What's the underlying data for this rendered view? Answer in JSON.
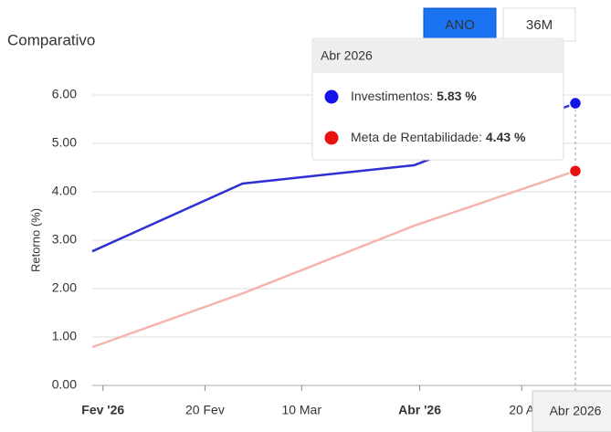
{
  "chart_data": {
    "type": "line",
    "title": "Comparativo",
    "ylabel": "Retorno (%)",
    "buttons": [
      "ANO",
      "36M"
    ],
    "active_button": 0,
    "x": [
      "2026-01-30",
      "2026-02-27",
      "2026-03-31",
      "2026-04-30"
    ],
    "xlim": [
      "2026-01-30",
      "2026-04-30"
    ],
    "xticks": [
      {
        "value": "2026-02-01",
        "label": "Fev '26"
      },
      {
        "value": "2026-02-20",
        "label": "20 Fev"
      },
      {
        "value": "2026-03-10",
        "label": "10 Mar"
      },
      {
        "value": "2026-04-01",
        "label": "Abr '26"
      },
      {
        "value": "2026-04-20",
        "label": "20 A"
      }
    ],
    "ylim": [
      0,
      6
    ],
    "yticks": [
      {
        "value": 0,
        "label": "0.00"
      },
      {
        "value": 1,
        "label": "1.00"
      },
      {
        "value": 2,
        "label": "2.00"
      },
      {
        "value": 3,
        "label": "3.00"
      },
      {
        "value": 4,
        "label": "4.00"
      },
      {
        "value": 5,
        "label": "5.00"
      },
      {
        "value": 6,
        "label": "6.00"
      }
    ],
    "grid": true,
    "series": [
      {
        "name": "Investimentos",
        "color": "#2f2fd3",
        "marker_color": "#1414e6",
        "values": [
          2.77,
          4.17,
          4.55,
          5.83
        ],
        "value_labels": [
          null,
          null,
          null,
          "5.83 %"
        ]
      },
      {
        "name": "Meta de Rentabilidade",
        "color": "#f5b5ae",
        "marker_color": "#e81010",
        "values": [
          0.79,
          1.9,
          3.3,
          4.43
        ],
        "value_labels": [
          null,
          null,
          null,
          "4.43 %"
        ]
      }
    ],
    "tooltip": {
      "title": "Abr 2026",
      "index": 3
    },
    "crosshair_label": "Abr 2026"
  }
}
